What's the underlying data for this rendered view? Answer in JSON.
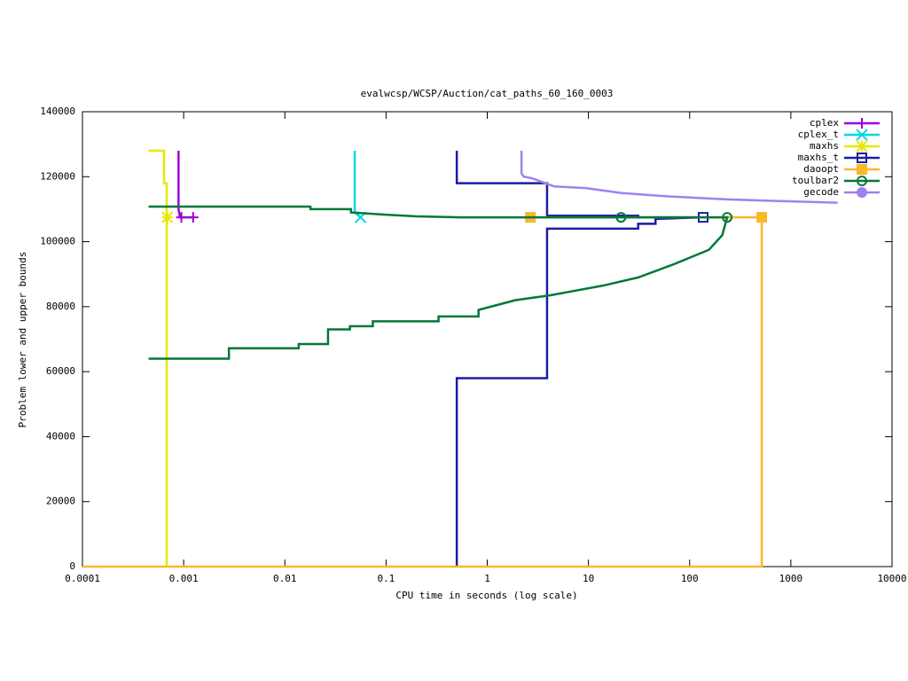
{
  "chart_data": {
    "type": "line",
    "log_x": true,
    "title": "evalwcsp/WCSP/Auction/cat_paths_60_160_0003",
    "x_label": "CPU time in seconds (log scale)",
    "y_label": "Problem lower and upper bounds",
    "xlim": [
      0.0001,
      10000
    ],
    "xticks": [
      0.0001,
      0.001,
      0.01,
      0.1,
      1,
      10,
      100,
      1000,
      10000
    ],
    "ylim": [
      0,
      140000
    ],
    "yticks": [
      0,
      20000,
      40000,
      60000,
      80000,
      100000,
      120000,
      140000
    ],
    "grid": false,
    "legend_position": "top-right",
    "series": [
      {
        "name": "cplex",
        "color": "#a000d8",
        "marker": "plus",
        "x": [
          0.00089,
          0.00089,
          0.00092,
          0.00124
        ],
        "values": [
          128000,
          110000,
          107500,
          107500
        ],
        "marker_x": [
          0.00095,
          0.00124
        ],
        "marker_values": [
          107500,
          107500
        ]
      },
      {
        "name": "cplex_t",
        "color": "#00d8e0",
        "marker": "cross",
        "x": [
          0.049,
          0.049,
          0.056
        ],
        "values": [
          128000,
          109000,
          107500
        ],
        "marker_x": [
          0.056
        ],
        "marker_values": [
          107500
        ]
      },
      {
        "name": "maxhs",
        "color": "#e8e800",
        "marker": "star",
        "x": [
          0.00045,
          0.00064,
          0.00064,
          0.00068,
          0.00068
        ],
        "values": [
          128000,
          128000,
          118000,
          118000,
          0
        ],
        "marker_x": [
          0.00069
        ],
        "marker_values": [
          107500
        ]
      },
      {
        "name": "maxhs_t",
        "color": "#1c1ca8",
        "marker": "square",
        "x": [
          0.5,
          0.5,
          3.9,
          3.9,
          31,
          31,
          136,
          null,
          0.5,
          0.5,
          3.9,
          3.9,
          31,
          31,
          46,
          46,
          136
        ],
        "values": [
          128000,
          118000,
          118000,
          108000,
          108000,
          107500,
          107500,
          null,
          0,
          58000,
          58000,
          104000,
          104000,
          105500,
          105500,
          107000,
          107500
        ],
        "marker_x": [
          136
        ],
        "marker_values": [
          107500
        ]
      },
      {
        "name": "daoopt",
        "color": "#f8b828",
        "marker": "filled-square",
        "x": [
          2.67,
          516,
          516,
          0.0001
        ],
        "values": [
          107500,
          107500,
          0,
          0
        ],
        "marker_x": [
          2.67,
          516
        ],
        "marker_values": [
          107500,
          107500
        ]
      },
      {
        "name": "toulbar2",
        "color": "#007838",
        "marker": "circle",
        "x": [
          0.00045,
          0.0179,
          0.0179,
          0.045,
          0.045,
          0.1,
          0.2,
          0.55,
          235,
          210,
          155,
          69,
          31,
          14,
          4.2,
          1.9,
          0.82,
          0.82,
          0.33,
          0.33,
          0.074,
          0.074,
          0.044,
          0.044,
          0.0267,
          0.0267,
          0.0137,
          0.0137,
          0.0028,
          0.0028,
          0.00045
        ],
        "values": [
          110800,
          110800,
          110000,
          110000,
          109000,
          108300,
          107800,
          107500,
          107500,
          102000,
          97500,
          93000,
          89000,
          86500,
          83500,
          82000,
          79000,
          77000,
          77000,
          75500,
          75500,
          74000,
          74000,
          73000,
          73000,
          68500,
          68500,
          67200,
          67200,
          64000,
          64000
        ],
        "marker_x": [
          21,
          235
        ],
        "marker_values": [
          107500,
          107500
        ]
      },
      {
        "name": "gecode",
        "color": "#a080f0",
        "marker": "filled-circle",
        "x": [
          2.18,
          2.18,
          2.3,
          2.78,
          4.6,
          9.4,
          21,
          57,
          235,
          780,
          2900
        ],
        "values": [
          128000,
          121000,
          120000,
          119500,
          117000,
          116500,
          115000,
          114000,
          113000,
          112500,
          112000
        ]
      }
    ]
  }
}
